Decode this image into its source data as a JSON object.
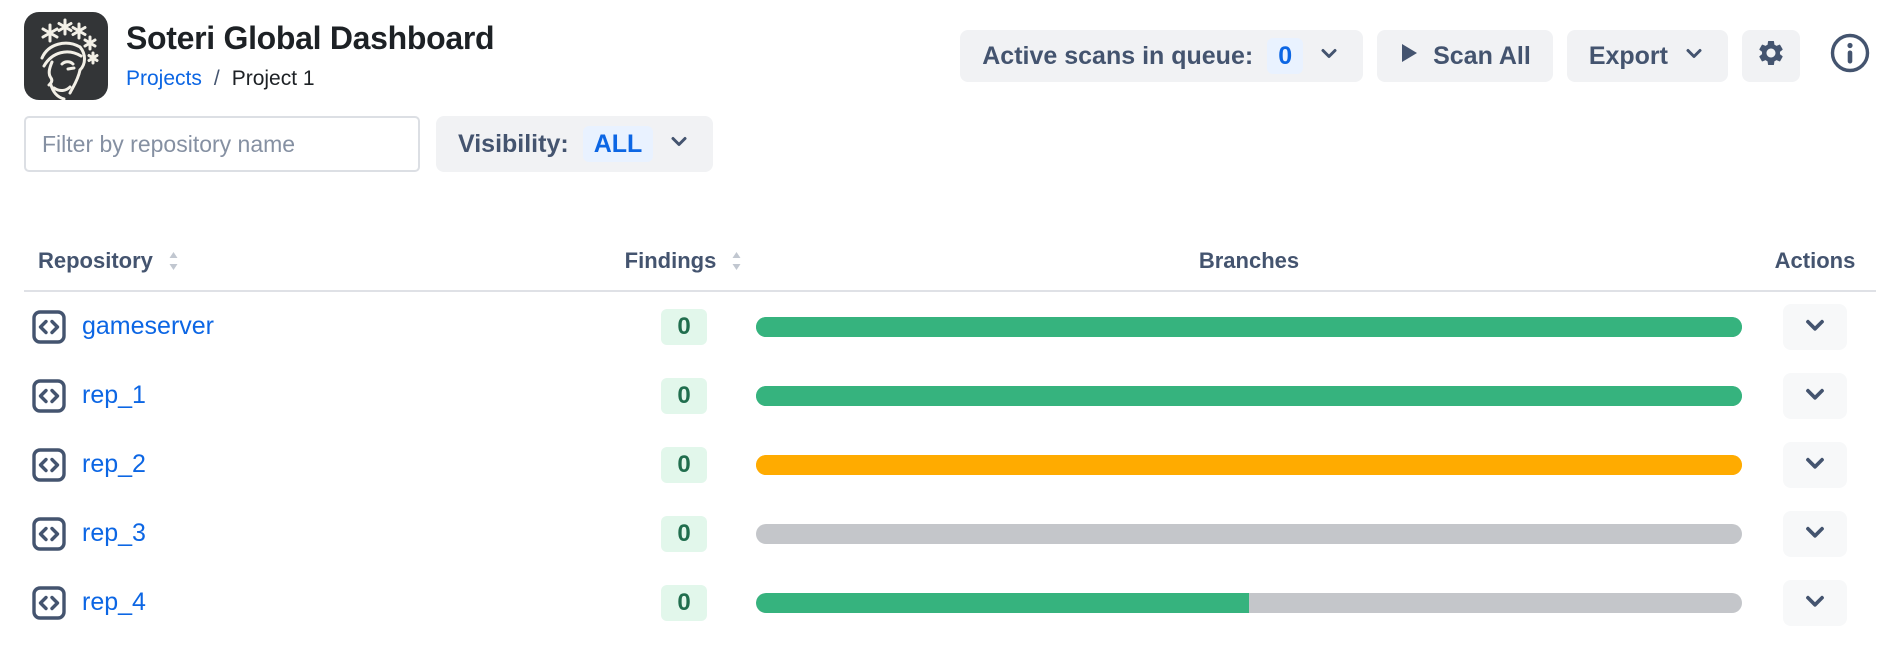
{
  "header": {
    "title": "Soteri Global Dashboard",
    "breadcrumb": {
      "link": "Projects",
      "separator": "/",
      "current": "Project 1"
    },
    "queue_button": {
      "label": "Active scans in queue:",
      "count": "0"
    },
    "scan_all_label": "Scan All",
    "export_label": "Export"
  },
  "filters": {
    "search_placeholder": "Filter by repository name",
    "search_value": "",
    "visibility_label": "Visibility:",
    "visibility_value": "ALL"
  },
  "table": {
    "columns": [
      {
        "label": "Repository",
        "sortable": true
      },
      {
        "label": "Findings",
        "sortable": true
      },
      {
        "label": "Branches",
        "sortable": false
      },
      {
        "label": "Actions",
        "sortable": false
      }
    ],
    "rows": [
      {
        "name": "gameserver",
        "findings": "0",
        "bar": {
          "fill_pct": 100,
          "fill_color": "#36B37E",
          "track_color": "#36B37E"
        }
      },
      {
        "name": "rep_1",
        "findings": "0",
        "bar": {
          "fill_pct": 100,
          "fill_color": "#36B37E",
          "track_color": "#36B37E"
        }
      },
      {
        "name": "rep_2",
        "findings": "0",
        "bar": {
          "fill_pct": 100,
          "fill_color": "#FFAB00",
          "track_color": "#FFAB00"
        }
      },
      {
        "name": "rep_3",
        "findings": "0",
        "bar": {
          "fill_pct": 0,
          "fill_color": "#36B37E",
          "track_color": "#C4C6CA"
        }
      },
      {
        "name": "rep_4",
        "findings": "0",
        "bar": {
          "fill_pct": 50,
          "fill_color": "#36B37E",
          "track_color": "#C4C6CA"
        }
      }
    ]
  },
  "icons": {
    "logo": "soteri-logo",
    "queue_dropdown": "chevron-down-icon",
    "scan_all": "play-icon",
    "export_dropdown": "chevron-down-icon",
    "settings": "gear-icon",
    "info": "info-circle-icon",
    "sort": "sort-arrows-icon",
    "repository": "code-brackets-icon",
    "row_actions": "chevron-down-icon"
  },
  "colors": {
    "link_blue": "#0C66E4",
    "badge_blue_bg": "#E9F2FF",
    "badge_green_bg": "#E2F7EB",
    "badge_green_text": "#216E4E",
    "bar_green": "#36B37E",
    "bar_orange": "#FFAB00",
    "bar_gray": "#C4C6CA",
    "button_gray_bg": "#F1F2F4",
    "text_slate": "#44546F",
    "heading_dark": "#1D2125"
  }
}
